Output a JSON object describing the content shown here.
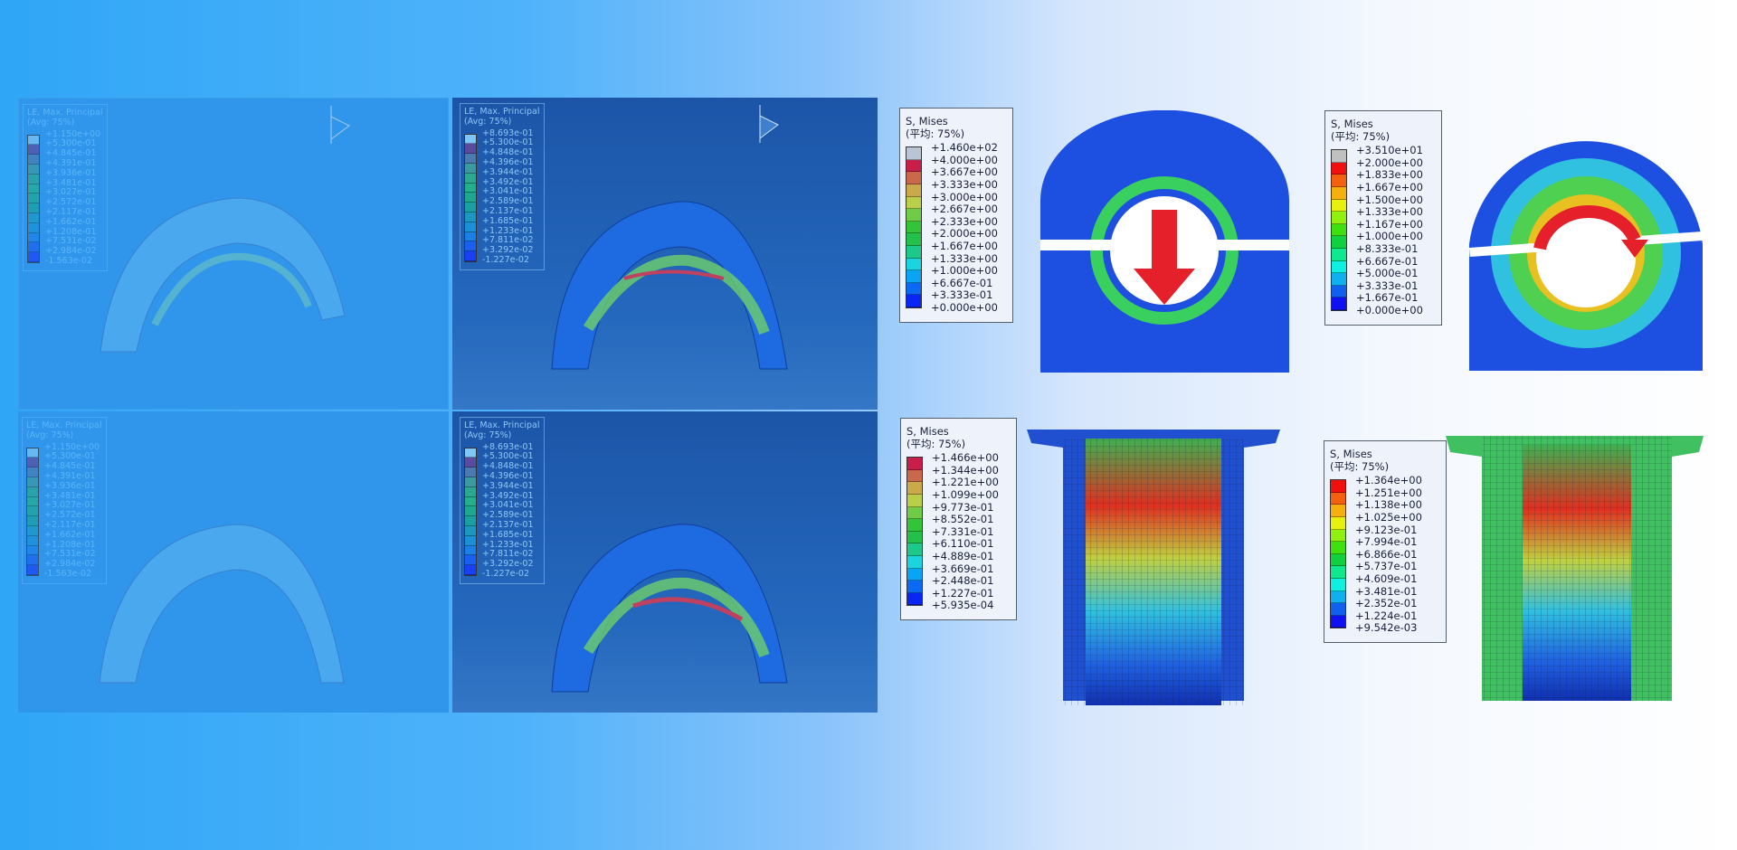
{
  "le_legend_a": {
    "title": "LE, Max. Principal",
    "avg": "(Avg: 75%)",
    "values": [
      "+1.150e+00",
      "+5.300e-01",
      "+4.845e-01",
      "+4.391e-01",
      "+3.936e-01",
      "+3.481e-01",
      "+3.027e-01",
      "+2.572e-01",
      "+2.117e-01",
      "+1.662e-01",
      "+1.208e-01",
      "+7.531e-02",
      "+2.984e-02",
      "-1.563e-02"
    ]
  },
  "le_legend_b": {
    "title": "LE, Max. Principal",
    "avg": "(Avg: 75%)",
    "values": [
      "+8.693e-01",
      "+5.300e-01",
      "+4.848e-01",
      "+4.396e-01",
      "+3.944e-01",
      "+3.492e-01",
      "+3.041e-01",
      "+2.589e-01",
      "+2.137e-01",
      "+1.685e-01",
      "+1.233e-01",
      "+7.811e-02",
      "+3.292e-02",
      "-1.227e-02"
    ]
  },
  "mises_1": {
    "title": "S, Mises",
    "avg": "(平均: 75%)",
    "values": [
      "+1.460e+02",
      "+4.000e+00",
      "+3.667e+00",
      "+3.333e+00",
      "+3.000e+00",
      "+2.667e+00",
      "+2.333e+00",
      "+2.000e+00",
      "+1.667e+00",
      "+1.333e+00",
      "+1.000e+00",
      "+6.667e-01",
      "+3.333e-01",
      "+0.000e+00"
    ],
    "colors": [
      "#b9c4d4",
      "#c81e4a",
      "#c9684a",
      "#c9a94a",
      "#b9cf4a",
      "#6fcc47",
      "#33c43a",
      "#24c04c",
      "#1dc98a",
      "#1ad4e0",
      "#0aa4f5",
      "#0a6af5",
      "#0a26f5"
    ]
  },
  "mises_2": {
    "title": "S, Mises",
    "avg": "(平均: 75%)",
    "values": [
      "+3.510e+01",
      "+2.000e+00",
      "+1.833e+00",
      "+1.667e+00",
      "+1.500e+00",
      "+1.333e+00",
      "+1.167e+00",
      "+1.000e+00",
      "+8.333e-01",
      "+6.667e-01",
      "+5.000e-01",
      "+3.333e-01",
      "+1.667e-01",
      "+0.000e+00"
    ],
    "colors": [
      "#c0c0c0",
      "#f01010",
      "#f56010",
      "#f5b010",
      "#e8f010",
      "#90f010",
      "#3ee010",
      "#10d040",
      "#10e890",
      "#10f0e0",
      "#10b0f0",
      "#1060f0",
      "#1010f0"
    ]
  },
  "mises_3": {
    "title": "S, Mises",
    "avg": "(平均: 75%)",
    "values": [
      "+1.466e+00",
      "+1.344e+00",
      "+1.221e+00",
      "+1.099e+00",
      "+9.773e-01",
      "+8.552e-01",
      "+7.331e-01",
      "+6.110e-01",
      "+4.889e-01",
      "+3.669e-01",
      "+2.448e-01",
      "+1.227e-01",
      "+5.935e-04"
    ],
    "colors": [
      "#c81e4a",
      "#c9684a",
      "#c9a94a",
      "#b9cf4a",
      "#6fcc47",
      "#33c43a",
      "#24c04c",
      "#1dc98a",
      "#1ad4e0",
      "#0aa4f5",
      "#0a6af5",
      "#0a26f5"
    ]
  },
  "mises_4": {
    "title": "S, Mises",
    "avg": "(平均: 75%)",
    "values": [
      "+1.364e+00",
      "+1.251e+00",
      "+1.138e+00",
      "+1.025e+00",
      "+9.123e-01",
      "+7.994e-01",
      "+6.866e-01",
      "+5.737e-01",
      "+4.609e-01",
      "+3.481e-01",
      "+2.352e-01",
      "+1.224e-01",
      "+9.542e-03"
    ],
    "colors": [
      "#f01010",
      "#f56010",
      "#f5b010",
      "#e8f010",
      "#90f010",
      "#3ee010",
      "#10d040",
      "#10e890",
      "#10f0e0",
      "#10b0f0",
      "#1060f0",
      "#1010f0"
    ]
  },
  "le_colors": [
    "#7fc6f5",
    "#5a4aa0",
    "#4a7ab0",
    "#3a9aa0",
    "#2aa890",
    "#22b08a",
    "#1fa890",
    "#1aa0a0",
    "#1a98c0",
    "#1a90d8",
    "#1a80e8",
    "#1a60f0",
    "#1a40f5"
  ],
  "icons": [
    "axis-triad-icon",
    "down-arrow-icon",
    "rotation-arrow-icon"
  ]
}
